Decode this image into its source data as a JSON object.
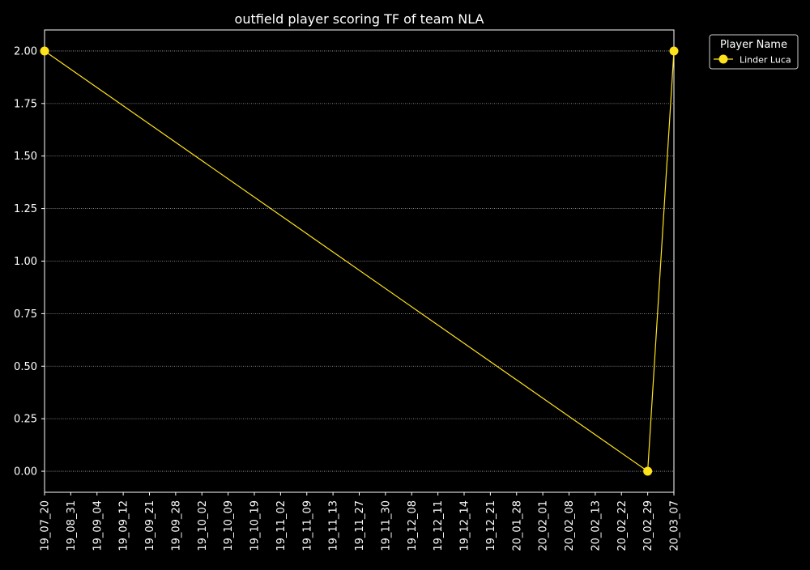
{
  "chart_data": {
    "type": "line",
    "title": "outfield player scoring TF of team NLA",
    "xlabel": "",
    "ylabel": "",
    "categories": [
      "19_07_20",
      "19_08_31",
      "19_09_04",
      "19_09_12",
      "19_09_21",
      "19_09_28",
      "19_10_02",
      "19_10_09",
      "19_10_19",
      "19_11_02",
      "19_11_09",
      "19_11_13",
      "19_11_27",
      "19_11_30",
      "19_12_08",
      "19_12_11",
      "19_12_14",
      "19_12_21",
      "20_01_28",
      "20_02_01",
      "20_02_08",
      "20_02_13",
      "20_02_22",
      "20_02_29",
      "20_03_07"
    ],
    "ylim": [
      -0.1,
      2.1
    ],
    "yticks": [
      0.0,
      0.25,
      0.5,
      0.75,
      1.0,
      1.25,
      1.5,
      1.75,
      2.0
    ],
    "ytick_labels": [
      "0.00",
      "0.25",
      "0.50",
      "0.75",
      "1.00",
      "1.25",
      "1.50",
      "1.75",
      "2.00"
    ],
    "grid": "horizontal dotted",
    "legend": {
      "title": "Player Name",
      "placement": "outside-top-right"
    },
    "series": [
      {
        "name": "Linder Luca",
        "color": "#ffe31a",
        "points": [
          {
            "x": "19_07_20",
            "y": 2.0
          },
          {
            "x": "20_02_29",
            "y": 0.0
          },
          {
            "x": "20_03_07",
            "y": 2.0
          }
        ]
      }
    ],
    "colors": {
      "background": "#000000",
      "axes": "#ffffff",
      "grid": "#aaaaaa",
      "text": "#ffffff"
    }
  }
}
